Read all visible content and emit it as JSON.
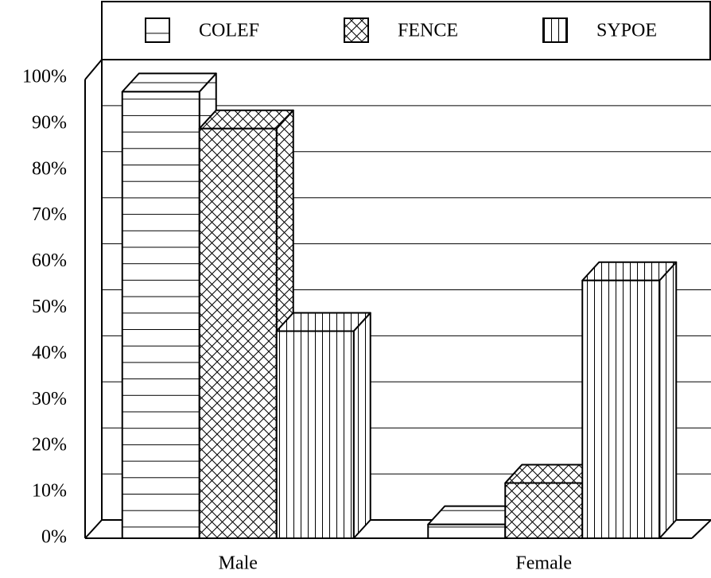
{
  "chart_data": {
    "type": "bar3d",
    "categories": [
      "Male",
      "Female"
    ],
    "series": [
      {
        "name": "COLEF",
        "color": "#000000",
        "hatch": "horizontal",
        "values": [
          97,
          3
        ]
      },
      {
        "name": "FENCE",
        "color": "#000000",
        "hatch": "cross",
        "values": [
          89,
          12
        ]
      },
      {
        "name": "SYPOE",
        "color": "#000000",
        "hatch": "vertical",
        "values": [
          45,
          56
        ]
      }
    ],
    "ylim": [
      0,
      100
    ],
    "yticks": [
      {
        "value": 0,
        "label": "0%"
      },
      {
        "value": 10,
        "label": "10%"
      },
      {
        "value": 20,
        "label": "20%"
      },
      {
        "value": 30,
        "label": "30%"
      },
      {
        "value": 40,
        "label": "40%"
      },
      {
        "value": 50,
        "label": "50%"
      },
      {
        "value": 60,
        "label": "60%"
      },
      {
        "value": 70,
        "label": "70%"
      },
      {
        "value": 80,
        "label": "80%"
      },
      {
        "value": 90,
        "label": "90%"
      },
      {
        "value": 100,
        "label": "100%"
      }
    ],
    "grid": true,
    "legend": "top"
  }
}
